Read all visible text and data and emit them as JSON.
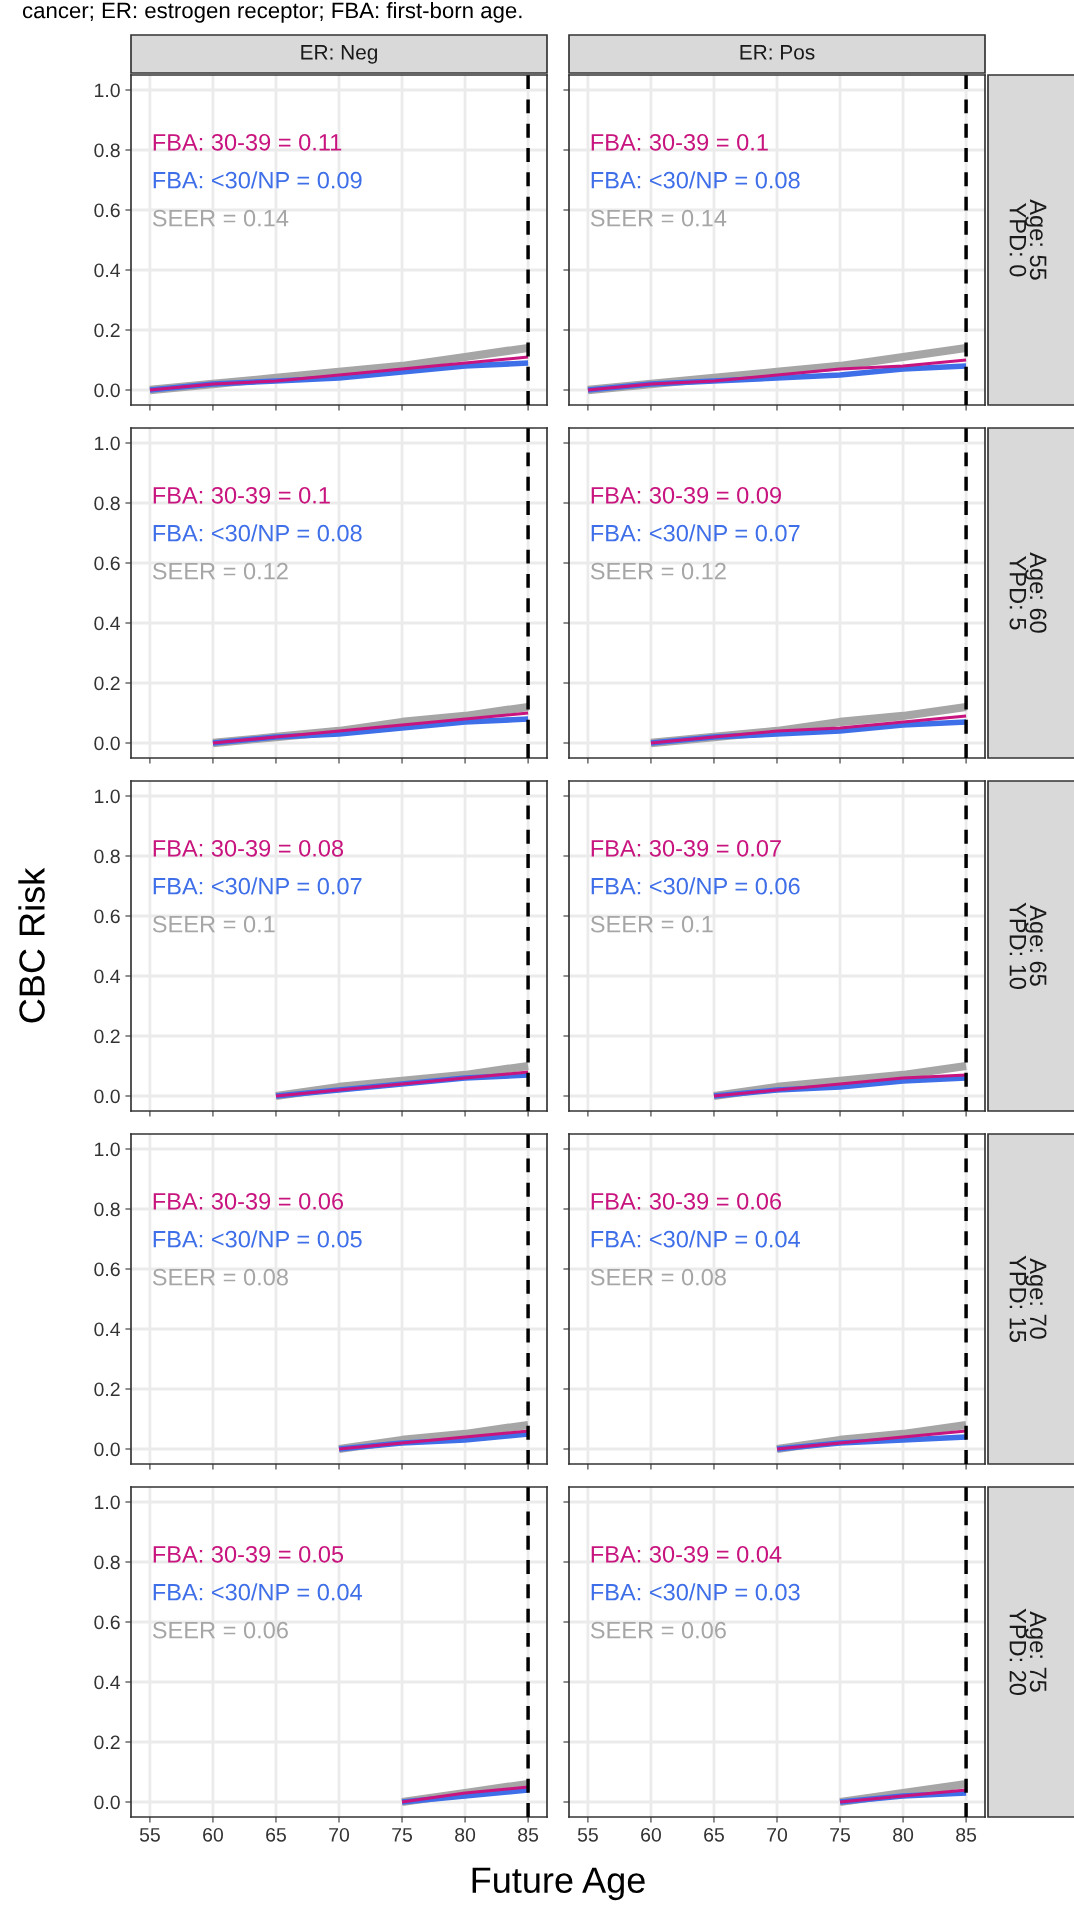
{
  "chart_data": [
    {
      "type": "line",
      "title": "ER: Neg",
      "tick_labels": "y",
      "xlim": [
        53.5,
        86.5
      ],
      "ylim": [
        -0.05,
        1.05
      ],
      "xticks": [
        {
          "value": 55,
          "label": null
        },
        {
          "value": 60,
          "label": null
        },
        {
          "value": 65,
          "label": null
        },
        {
          "value": 70,
          "label": null
        },
        {
          "value": 75,
          "label": null
        },
        {
          "value": 80,
          "label": null
        },
        {
          "value": 85,
          "label": null
        }
      ],
      "yticks": [
        {
          "value": 0,
          "label": "0.0"
        },
        {
          "value": 0.2,
          "label": "0.2"
        },
        {
          "value": 0.4,
          "label": "0.4"
        },
        {
          "value": 0.6,
          "label": "0.6"
        },
        {
          "value": 0.8,
          "label": "0.8"
        },
        {
          "value": 1,
          "label": "1.0"
        }
      ],
      "grid": true,
      "legend": false,
      "ref_lines": [
        {
          "axis": "x",
          "value": 85,
          "color": "#000000",
          "line_style": "dashed"
        }
      ],
      "annotations": [
        "FBA: 30-39 = 0.11",
        "FBA: <30/NP = 0.09",
        "SEER = 0.14",
        "cancer; ER: estrogen receptor; FBA: first-born age."
      ],
      "series": [
        {
          "color": "#c8147e",
          "x": [
            55,
            60,
            65,
            70,
            75,
            80,
            85
          ],
          "values": [
            0,
            0.02,
            0.03,
            0.05,
            0.07,
            0.09,
            0.11
          ]
        },
        {
          "color": "#3f6fe8",
          "x": [
            55,
            60,
            65,
            70,
            75,
            80,
            85
          ],
          "values": [
            0,
            0.02,
            0.03,
            0.04,
            0.06,
            0.08,
            0.09
          ]
        },
        {
          "color": "#a6a6a6",
          "x": [
            55,
            60,
            65,
            70,
            75,
            80,
            85
          ],
          "values": [
            0,
            0.02,
            0.04,
            0.06,
            0.08,
            0.11,
            0.14
          ]
        }
      ]
    },
    {
      "type": "line",
      "title": "ER: Pos",
      "y2label": "Age: 55\nYPD: 0",
      "tick_labels": false,
      "xlim": [
        53.5,
        86.5
      ],
      "ylim": [
        -0.05,
        1.05
      ],
      "xticks": [
        {
          "value": 55,
          "label": null
        },
        {
          "value": 60,
          "label": null
        },
        {
          "value": 65,
          "label": null
        },
        {
          "value": 70,
          "label": null
        },
        {
          "value": 75,
          "label": null
        },
        {
          "value": 80,
          "label": null
        },
        {
          "value": 85,
          "label": null
        }
      ],
      "yticks": [
        {
          "value": 0,
          "label": null
        },
        {
          "value": 0.2,
          "label": null
        },
        {
          "value": 0.4,
          "label": null
        },
        {
          "value": 0.6,
          "label": null
        },
        {
          "value": 0.8,
          "label": null
        },
        {
          "value": 1,
          "label": null
        }
      ],
      "grid": true,
      "legend": false,
      "ref_lines": [
        {
          "axis": "x",
          "value": 85,
          "color": "#000000",
          "line_style": "dashed"
        }
      ],
      "annotations": [
        "FBA: 30-39 = 0.1",
        "FBA: <30/NP = 0.08",
        "SEER = 0.14"
      ],
      "series": [
        {
          "color": "#c8147e",
          "x": [
            55,
            60,
            65,
            70,
            75,
            80,
            85
          ],
          "values": [
            0,
            0.02,
            0.03,
            0.05,
            0.07,
            0.08,
            0.1
          ]
        },
        {
          "color": "#3f6fe8",
          "x": [
            55,
            60,
            65,
            70,
            75,
            80,
            85
          ],
          "values": [
            0,
            0.02,
            0.03,
            0.04,
            0.05,
            0.07,
            0.08
          ]
        },
        {
          "color": "#a6a6a6",
          "x": [
            55,
            60,
            65,
            70,
            75,
            80,
            85
          ],
          "values": [
            0,
            0.02,
            0.04,
            0.06,
            0.08,
            0.11,
            0.14
          ]
        }
      ]
    },
    {
      "type": "line",
      "tick_labels": "y",
      "xlim": [
        53.5,
        86.5
      ],
      "ylim": [
        -0.05,
        1.05
      ],
      "xticks": [
        {
          "value": 55,
          "label": null
        },
        {
          "value": 60,
          "label": null
        },
        {
          "value": 65,
          "label": null
        },
        {
          "value": 70,
          "label": null
        },
        {
          "value": 75,
          "label": null
        },
        {
          "value": 80,
          "label": null
        },
        {
          "value": 85,
          "label": null
        }
      ],
      "yticks": [
        {
          "value": 0,
          "label": "0.0"
        },
        {
          "value": 0.2,
          "label": "0.2"
        },
        {
          "value": 0.4,
          "label": "0.4"
        },
        {
          "value": 0.6,
          "label": "0.6"
        },
        {
          "value": 0.8,
          "label": "0.8"
        },
        {
          "value": 1,
          "label": "1.0"
        }
      ],
      "grid": true,
      "legend": false,
      "ref_lines": [
        {
          "axis": "x",
          "value": 85,
          "color": "#000000",
          "line_style": "dashed"
        }
      ],
      "annotations": [
        "FBA: 30-39 = 0.1",
        "FBA: <30/NP = 0.08",
        "SEER = 0.12"
      ],
      "series": [
        {
          "color": "#c8147e",
          "x": [
            60,
            65,
            70,
            75,
            80,
            85
          ],
          "values": [
            0,
            0.02,
            0.04,
            0.06,
            0.08,
            0.1
          ]
        },
        {
          "color": "#3f6fe8",
          "x": [
            60,
            65,
            70,
            75,
            80,
            85
          ],
          "values": [
            0,
            0.02,
            0.03,
            0.05,
            0.07,
            0.08
          ]
        },
        {
          "color": "#a6a6a6",
          "x": [
            60,
            65,
            70,
            75,
            80,
            85
          ],
          "values": [
            0,
            0.02,
            0.04,
            0.07,
            0.09,
            0.12
          ]
        }
      ]
    },
    {
      "type": "line",
      "y2label": "Age: 60\nYPD: 5",
      "tick_labels": false,
      "xlim": [
        53.5,
        86.5
      ],
      "ylim": [
        -0.05,
        1.05
      ],
      "xticks": [
        {
          "value": 55,
          "label": null
        },
        {
          "value": 60,
          "label": null
        },
        {
          "value": 65,
          "label": null
        },
        {
          "value": 70,
          "label": null
        },
        {
          "value": 75,
          "label": null
        },
        {
          "value": 80,
          "label": null
        },
        {
          "value": 85,
          "label": null
        }
      ],
      "yticks": [
        {
          "value": 0,
          "label": null
        },
        {
          "value": 0.2,
          "label": null
        },
        {
          "value": 0.4,
          "label": null
        },
        {
          "value": 0.6,
          "label": null
        },
        {
          "value": 0.8,
          "label": null
        },
        {
          "value": 1,
          "label": null
        }
      ],
      "grid": true,
      "legend": false,
      "ref_lines": [
        {
          "axis": "x",
          "value": 85,
          "color": "#000000",
          "line_style": "dashed"
        }
      ],
      "annotations": [
        "FBA: 30-39 = 0.09",
        "FBA: <30/NP = 0.07",
        "SEER = 0.12"
      ],
      "series": [
        {
          "color": "#c8147e",
          "x": [
            60,
            65,
            70,
            75,
            80,
            85
          ],
          "values": [
            0,
            0.02,
            0.04,
            0.05,
            0.07,
            0.09
          ]
        },
        {
          "color": "#3f6fe8",
          "x": [
            60,
            65,
            70,
            75,
            80,
            85
          ],
          "values": [
            0,
            0.02,
            0.03,
            0.04,
            0.06,
            0.07
          ]
        },
        {
          "color": "#a6a6a6",
          "x": [
            60,
            65,
            70,
            75,
            80,
            85
          ],
          "values": [
            0,
            0.02,
            0.04,
            0.07,
            0.09,
            0.12
          ]
        }
      ]
    },
    {
      "type": "line",
      "ylabel": "CBC Risk",
      "tick_labels": "y",
      "xlim": [
        53.5,
        86.5
      ],
      "ylim": [
        -0.05,
        1.05
      ],
      "xticks": [
        {
          "value": 55,
          "label": null
        },
        {
          "value": 60,
          "label": null
        },
        {
          "value": 65,
          "label": null
        },
        {
          "value": 70,
          "label": null
        },
        {
          "value": 75,
          "label": null
        },
        {
          "value": 80,
          "label": null
        },
        {
          "value": 85,
          "label": null
        }
      ],
      "yticks": [
        {
          "value": 0,
          "label": "0.0"
        },
        {
          "value": 0.2,
          "label": "0.2"
        },
        {
          "value": 0.4,
          "label": "0.4"
        },
        {
          "value": 0.6,
          "label": "0.6"
        },
        {
          "value": 0.8,
          "label": "0.8"
        },
        {
          "value": 1,
          "label": "1.0"
        }
      ],
      "grid": true,
      "legend": false,
      "ref_lines": [
        {
          "axis": "x",
          "value": 85,
          "color": "#000000",
          "line_style": "dashed"
        }
      ],
      "annotations": [
        "FBA: 30-39 = 0.08",
        "FBA: <30/NP = 0.07",
        "SEER = 0.1"
      ],
      "series": [
        {
          "color": "#c8147e",
          "x": [
            65,
            70,
            75,
            80,
            85
          ],
          "values": [
            0,
            0.02,
            0.04,
            0.06,
            0.08
          ]
        },
        {
          "color": "#3f6fe8",
          "x": [
            65,
            70,
            75,
            80,
            85
          ],
          "values": [
            0,
            0.02,
            0.04,
            0.06,
            0.07
          ]
        },
        {
          "color": "#a6a6a6",
          "x": [
            65,
            70,
            75,
            80,
            85
          ],
          "values": [
            0,
            0.03,
            0.05,
            0.07,
            0.1
          ]
        }
      ]
    },
    {
      "type": "line",
      "y2label": "Age: 65\nYPD: 10",
      "tick_labels": false,
      "xlim": [
        53.5,
        86.5
      ],
      "ylim": [
        -0.05,
        1.05
      ],
      "xticks": [
        {
          "value": 55,
          "label": null
        },
        {
          "value": 60,
          "label": null
        },
        {
          "value": 65,
          "label": null
        },
        {
          "value": 70,
          "label": null
        },
        {
          "value": 75,
          "label": null
        },
        {
          "value": 80,
          "label": null
        },
        {
          "value": 85,
          "label": null
        }
      ],
      "yticks": [
        {
          "value": 0,
          "label": null
        },
        {
          "value": 0.2,
          "label": null
        },
        {
          "value": 0.4,
          "label": null
        },
        {
          "value": 0.6,
          "label": null
        },
        {
          "value": 0.8,
          "label": null
        },
        {
          "value": 1,
          "label": null
        }
      ],
      "grid": true,
      "legend": false,
      "ref_lines": [
        {
          "axis": "x",
          "value": 85,
          "color": "#000000",
          "line_style": "dashed"
        }
      ],
      "annotations": [
        "FBA: 30-39 = 0.07",
        "FBA: <30/NP = 0.06",
        "SEER = 0.1"
      ],
      "series": [
        {
          "color": "#c8147e",
          "x": [
            65,
            70,
            75,
            80,
            85
          ],
          "values": [
            0,
            0.02,
            0.04,
            0.06,
            0.07
          ]
        },
        {
          "color": "#3f6fe8",
          "x": [
            65,
            70,
            75,
            80,
            85
          ],
          "values": [
            0,
            0.02,
            0.03,
            0.05,
            0.06
          ]
        },
        {
          "color": "#a6a6a6",
          "x": [
            65,
            70,
            75,
            80,
            85
          ],
          "values": [
            0,
            0.03,
            0.05,
            0.07,
            0.1
          ]
        }
      ]
    },
    {
      "type": "line",
      "tick_labels": "y",
      "xlim": [
        53.5,
        86.5
      ],
      "ylim": [
        -0.05,
        1.05
      ],
      "xticks": [
        {
          "value": 55,
          "label": null
        },
        {
          "value": 60,
          "label": null
        },
        {
          "value": 65,
          "label": null
        },
        {
          "value": 70,
          "label": null
        },
        {
          "value": 75,
          "label": null
        },
        {
          "value": 80,
          "label": null
        },
        {
          "value": 85,
          "label": null
        }
      ],
      "yticks": [
        {
          "value": 0,
          "label": "0.0"
        },
        {
          "value": 0.2,
          "label": "0.2"
        },
        {
          "value": 0.4,
          "label": "0.4"
        },
        {
          "value": 0.6,
          "label": "0.6"
        },
        {
          "value": 0.8,
          "label": "0.8"
        },
        {
          "value": 1,
          "label": "1.0"
        }
      ],
      "grid": true,
      "legend": false,
      "ref_lines": [
        {
          "axis": "x",
          "value": 85,
          "color": "#000000",
          "line_style": "dashed"
        }
      ],
      "annotations": [
        "FBA: 30-39 = 0.06",
        "FBA: <30/NP = 0.05",
        "SEER = 0.08"
      ],
      "series": [
        {
          "color": "#c8147e",
          "x": [
            70,
            75,
            80,
            85
          ],
          "values": [
            0,
            0.02,
            0.04,
            0.06
          ]
        },
        {
          "color": "#3f6fe8",
          "x": [
            70,
            75,
            80,
            85
          ],
          "values": [
            0,
            0.02,
            0.03,
            0.05
          ]
        },
        {
          "color": "#a6a6a6",
          "x": [
            70,
            75,
            80,
            85
          ],
          "values": [
            0,
            0.03,
            0.05,
            0.08
          ]
        }
      ]
    },
    {
      "type": "line",
      "y2label": "Age: 70\nYPD: 15",
      "tick_labels": false,
      "xlim": [
        53.5,
        86.5
      ],
      "ylim": [
        -0.05,
        1.05
      ],
      "xticks": [
        {
          "value": 55,
          "label": null
        },
        {
          "value": 60,
          "label": null
        },
        {
          "value": 65,
          "label": null
        },
        {
          "value": 70,
          "label": null
        },
        {
          "value": 75,
          "label": null
        },
        {
          "value": 80,
          "label": null
        },
        {
          "value": 85,
          "label": null
        }
      ],
      "yticks": [
        {
          "value": 0,
          "label": null
        },
        {
          "value": 0.2,
          "label": null
        },
        {
          "value": 0.4,
          "label": null
        },
        {
          "value": 0.6,
          "label": null
        },
        {
          "value": 0.8,
          "label": null
        },
        {
          "value": 1,
          "label": null
        }
      ],
      "grid": true,
      "legend": false,
      "ref_lines": [
        {
          "axis": "x",
          "value": 85,
          "color": "#000000",
          "line_style": "dashed"
        }
      ],
      "annotations": [
        "FBA: 30-39 = 0.06",
        "FBA: <30/NP = 0.04",
        "SEER = 0.08"
      ],
      "series": [
        {
          "color": "#c8147e",
          "x": [
            70,
            75,
            80,
            85
          ],
          "values": [
            0,
            0.02,
            0.04,
            0.06
          ]
        },
        {
          "color": "#3f6fe8",
          "x": [
            70,
            75,
            80,
            85
          ],
          "values": [
            0,
            0.02,
            0.03,
            0.04
          ]
        },
        {
          "color": "#a6a6a6",
          "x": [
            70,
            75,
            80,
            85
          ],
          "values": [
            0,
            0.03,
            0.05,
            0.08
          ]
        }
      ]
    },
    {
      "type": "line",
      "xlabel": "Future Age",
      "xlim": [
        53.5,
        86.5
      ],
      "ylim": [
        -0.05,
        1.05
      ],
      "xticks": [
        55,
        60,
        65,
        70,
        75,
        80,
        85
      ],
      "yticks": [
        {
          "value": 0,
          "label": "0.0"
        },
        {
          "value": 0.2,
          "label": "0.2"
        },
        {
          "value": 0.4,
          "label": "0.4"
        },
        {
          "value": 0.6,
          "label": "0.6"
        },
        {
          "value": 0.8,
          "label": "0.8"
        },
        {
          "value": 1,
          "label": "1.0"
        }
      ],
      "grid": true,
      "legend": false,
      "ref_lines": [
        {
          "axis": "x",
          "value": 85,
          "color": "#000000",
          "line_style": "dashed"
        }
      ],
      "annotations": [
        "FBA: 30-39 = 0.05",
        "FBA: <30/NP = 0.04",
        "SEER = 0.06"
      ],
      "series": [
        {
          "color": "#c8147e",
          "x": [
            75,
            80,
            85
          ],
          "values": [
            0,
            0.03,
            0.05
          ]
        },
        {
          "color": "#3f6fe8",
          "x": [
            75,
            80,
            85
          ],
          "values": [
            0,
            0.02,
            0.04
          ]
        },
        {
          "color": "#a6a6a6",
          "x": [
            75,
            80,
            85
          ],
          "values": [
            0,
            0.03,
            0.06
          ]
        }
      ]
    },
    {
      "type": "line",
      "y2label": "Age: 75\nYPD: 20",
      "tick_labels": "x",
      "xlim": [
        53.5,
        86.5
      ],
      "ylim": [
        -0.05,
        1.05
      ],
      "xticks": [
        55,
        60,
        65,
        70,
        75,
        80,
        85
      ],
      "yticks": [
        {
          "value": 0,
          "label": null
        },
        {
          "value": 0.2,
          "label": null
        },
        {
          "value": 0.4,
          "label": null
        },
        {
          "value": 0.6,
          "label": null
        },
        {
          "value": 0.8,
          "label": null
        },
        {
          "value": 1,
          "label": null
        }
      ],
      "grid": true,
      "legend": false,
      "ref_lines": [
        {
          "axis": "x",
          "value": 85,
          "color": "#000000",
          "line_style": "dashed"
        }
      ],
      "annotations": [
        "FBA: 30-39 = 0.04",
        "FBA: <30/NP = 0.03",
        "SEER = 0.06"
      ],
      "series": [
        {
          "color": "#c8147e",
          "x": [
            75,
            80,
            85
          ],
          "values": [
            0,
            0.02,
            0.04
          ]
        },
        {
          "color": "#3f6fe8",
          "x": [
            75,
            80,
            85
          ],
          "values": [
            0,
            0.02,
            0.03
          ]
        },
        {
          "color": "#a6a6a6",
          "x": [
            75,
            80,
            85
          ],
          "values": [
            0,
            0.03,
            0.06
          ]
        }
      ]
    }
  ]
}
